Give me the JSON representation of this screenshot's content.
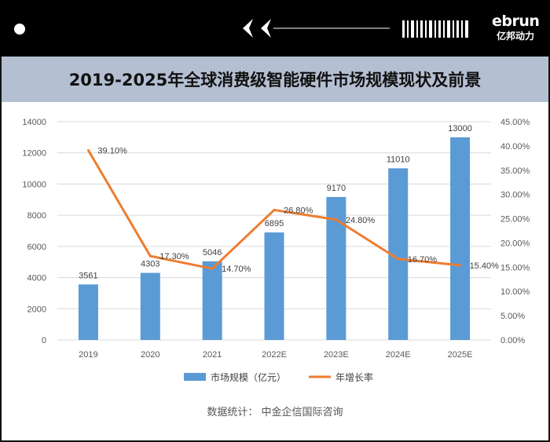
{
  "brand": {
    "logo_text": "ebrun",
    "logo_subtext": "亿邦动力"
  },
  "title": "2019-2025年全球消费级智能硬件市场规模现状及前景",
  "source": "数据统计：  中金企信国际咨询",
  "colors": {
    "bar": "#5b9bd5",
    "line": "#ed7d31",
    "title_band": "#b4bfd2",
    "header": "#000000"
  },
  "chart_data": {
    "type": "bar",
    "categories": [
      "2019",
      "2020",
      "2021",
      "2022E",
      "2023E",
      "2024E",
      "2025E"
    ],
    "series": [
      {
        "name": "市场规模（亿元）",
        "type": "bar",
        "axis": "left",
        "values": [
          3561,
          4303,
          5046,
          6895,
          9170,
          11010,
          13000
        ],
        "labels": [
          "3561",
          "4303",
          "5046",
          "6895",
          "9170",
          "11010",
          "13000"
        ]
      },
      {
        "name": "年增长率",
        "type": "line",
        "axis": "right",
        "values": [
          39.1,
          17.3,
          14.7,
          26.8,
          24.8,
          16.7,
          15.4
        ],
        "labels": [
          "39.10%",
          "17.30%",
          "14.70%",
          "26.80%",
          "24.80%",
          "16.70%",
          "15.40%"
        ]
      }
    ],
    "y_left": {
      "min": 0,
      "max": 14000,
      "ticks": [
        "0",
        "2000",
        "4000",
        "6000",
        "8000",
        "10000",
        "12000",
        "14000"
      ]
    },
    "y_right": {
      "min": 0,
      "max": 45,
      "ticks": [
        "0.00%",
        "5.00%",
        "10.00%",
        "15.00%",
        "20.00%",
        "25.00%",
        "30.00%",
        "35.00%",
        "40.00%",
        "45.00%"
      ]
    },
    "grid": true,
    "legend_position": "bottom"
  }
}
